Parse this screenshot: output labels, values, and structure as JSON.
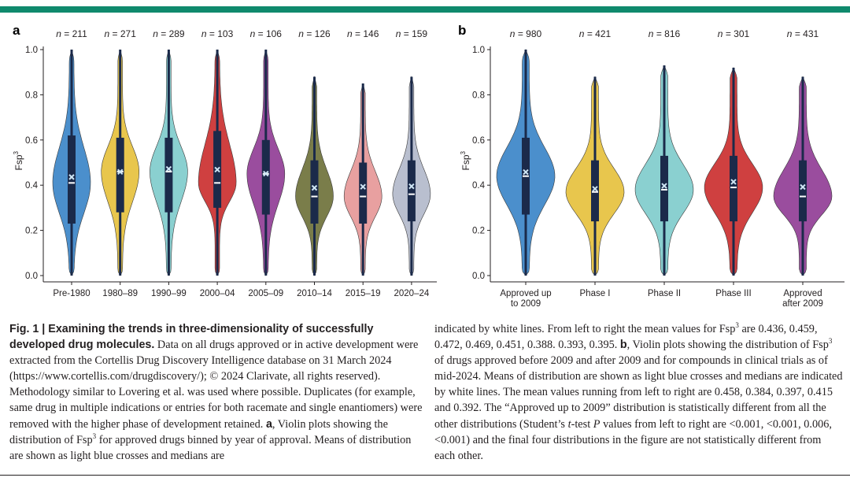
{
  "chart_data": [
    {
      "panel": "a",
      "type": "violin",
      "ylabel": "Fsp3",
      "ylim": [
        0,
        1.0
      ],
      "yticks": [
        "0.0",
        "0.2",
        "0.4",
        "0.6",
        "0.8",
        "1.0"
      ],
      "categories": [
        "Pre-1980",
        "1980–89",
        "1990–99",
        "2000–04",
        "2005–09",
        "2010–14",
        "2015–19",
        "2020–24"
      ],
      "n_labels": [
        "n = 211",
        "n = 271",
        "n = 289",
        "n = 103",
        "n = 106",
        "n = 126",
        "n = 146",
        "n = 159"
      ],
      "colors": [
        "#4b8fcc",
        "#e8c64d",
        "#8ad0d0",
        "#cf4040",
        "#9a4d9e",
        "#7a7d4a",
        "#e8a0a0",
        "#b9bfcf"
      ],
      "means": [
        0.436,
        0.459,
        0.472,
        0.469,
        0.451,
        0.388,
        0.393,
        0.395
      ],
      "medians": [
        0.41,
        0.46,
        0.46,
        0.41,
        0.45,
        0.35,
        0.35,
        0.36
      ],
      "q1": [
        0.23,
        0.28,
        0.28,
        0.3,
        0.27,
        0.23,
        0.23,
        0.24
      ],
      "q3": [
        0.62,
        0.61,
        0.61,
        0.64,
        0.6,
        0.51,
        0.5,
        0.51
      ],
      "whisker_max": [
        1.0,
        1.0,
        1.0,
        1.0,
        1.0,
        0.88,
        0.85,
        0.88
      ]
    },
    {
      "panel": "b",
      "type": "violin",
      "ylabel": "Fsp3",
      "ylim": [
        0,
        1.0
      ],
      "yticks": [
        "0.0",
        "0.2",
        "0.4",
        "0.6",
        "0.8",
        "1.0"
      ],
      "categories": [
        [
          "Approved up",
          "to 2009"
        ],
        [
          "Phase I"
        ],
        [
          "Phase II"
        ],
        [
          "Phase III"
        ],
        [
          "Approved",
          "after 2009"
        ]
      ],
      "n_labels": [
        "n = 980",
        "n = 421",
        "n = 816",
        "n = 301",
        "n = 431"
      ],
      "colors": [
        "#4b8fcc",
        "#e8c64d",
        "#8ad0d0",
        "#cf4040",
        "#9a4d9e"
      ],
      "means": [
        0.458,
        0.384,
        0.397,
        0.415,
        0.392
      ],
      "medians": [
        0.44,
        0.37,
        0.38,
        0.39,
        0.35
      ],
      "q1": [
        0.27,
        0.24,
        0.24,
        0.24,
        0.24
      ],
      "q3": [
        0.61,
        0.51,
        0.53,
        0.53,
        0.51
      ],
      "whisker_max": [
        1.0,
        0.88,
        0.93,
        0.92,
        0.88
      ]
    }
  ],
  "panel_labels": {
    "a": "a",
    "b": "b"
  },
  "caption": {
    "fig_label": "Fig. 1 | ",
    "title": "Examining the trends in three-dimensionality of successfully developed drug molecules.",
    "left_text_1": " Data on all drugs approved or in active development were extracted from the Cortellis Drug Discovery Intelligence database on 31 March 2024 (",
    "link": "https://www.cortellis.com/drugdiscovery/",
    "left_text_2": "; © 2024 Clarivate, all rights reserved). Methodology similar to Lovering et al. was used where possible. Duplicates (for example, same drug in multiple indications or entries for both racemate and single enantiomers) were removed with the higher phase of development retained. ",
    "panel_a_ref": "a",
    "left_text_3": ", Violin plots showing the distribution of Fsp",
    "left_text_4": " for approved drugs binned by year of approval. Means of distribution are shown as light blue crosses and medians are",
    "right_text_1": "indicated by white lines. From left to right the mean values for Fsp",
    "right_text_2": " are 0.436, 0.459, 0.472, 0.469, 0.451, 0.388. 0.393, 0.395. ",
    "panel_b_ref": "b",
    "right_text_3": ", Violin plots showing the distribution of Fsp",
    "right_text_4": " of drugs approved before 2009 and after 2009 and for compounds in clinical trials as of mid-2024. Means of distribution are shown as light blue crosses and medians are indicated by white lines. The mean values running from left to right are 0.458, 0.384, 0.397, 0.415 and 0.392. The “Approved up to 2009” distribution is statistically different from all the other distributions (Student’s ",
    "t_italic": "t",
    "right_text_5": "-test ",
    "p_italic": "P",
    "right_text_6": " values from left to right are <0.001, <0.001, 0.006, <0.001) and the final four distributions in the figure are not statistically different from each other.",
    "superscript": "3"
  },
  "colors": {
    "accent_bar": "#0f8a6d",
    "box": "#1b2a4a",
    "mean_cross": "#cfe6f5"
  }
}
